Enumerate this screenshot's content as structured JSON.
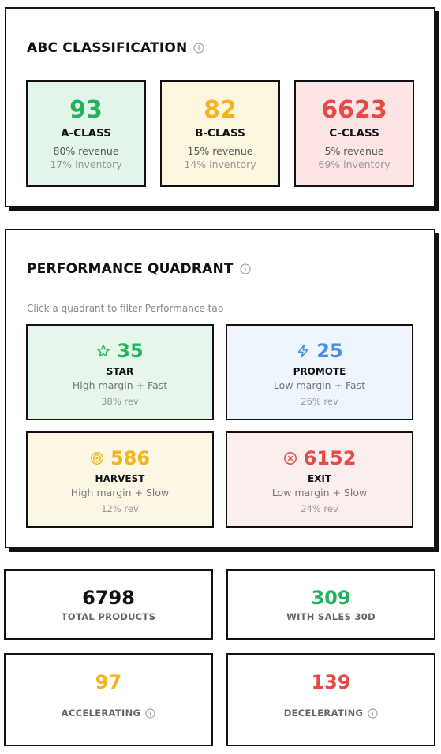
{
  "abc": {
    "title": "ABC CLASSIFICATION",
    "cards": [
      {
        "value": "93",
        "label": "A-CLASS",
        "revenue": "80% revenue",
        "inventory": "17% inventory",
        "color": "#22b35e",
        "bg": "#e3f5e8"
      },
      {
        "value": "82",
        "label": "B-CLASS",
        "revenue": "15% revenue",
        "inventory": "14% inventory",
        "color": "#f2b51f",
        "bg": "#fdf6e0"
      },
      {
        "value": "6623",
        "label": "C-CLASS",
        "revenue": "5% revenue",
        "inventory": "69% inventory",
        "color": "#e24b47",
        "bg": "#fde5e5"
      }
    ]
  },
  "quadrant": {
    "title": "PERFORMANCE QUADRANT",
    "subtitle": "Click a quadrant to filter Performance tab",
    "cards": [
      {
        "icon": "star-icon",
        "value": "35",
        "label": "STAR",
        "desc": "High margin + Fast",
        "rev": "38% rev",
        "color": "#22b35e",
        "bg": "#e6f6ea"
      },
      {
        "icon": "lightning-icon",
        "value": "25",
        "label": "PROMOTE",
        "desc": "Low margin + Fast",
        "rev": "26% rev",
        "color": "#4b8fdb",
        "bg": "#eef5fd"
      },
      {
        "icon": "target-icon",
        "value": "586",
        "label": "HARVEST",
        "desc": "High margin + Slow",
        "rev": "12% rev",
        "color": "#f2b51f",
        "bg": "#fdf8e6"
      },
      {
        "icon": "x-circle-icon",
        "value": "6152",
        "label": "EXIT",
        "desc": "Low margin + Slow",
        "rev": "24% rev",
        "color": "#e24b47",
        "bg": "#fdeeee"
      }
    ]
  },
  "stats": [
    {
      "value": "6798",
      "label": "TOTAL PRODUCTS",
      "color": "#111111"
    },
    {
      "value": "309",
      "label": "WITH SALES 30D",
      "color": "#22b35e"
    },
    {
      "value": "97",
      "label": "ACCELERATING",
      "color": "#f2b51f"
    },
    {
      "value": "139",
      "label": "DECELERATING",
      "color": "#e24b47"
    }
  ]
}
